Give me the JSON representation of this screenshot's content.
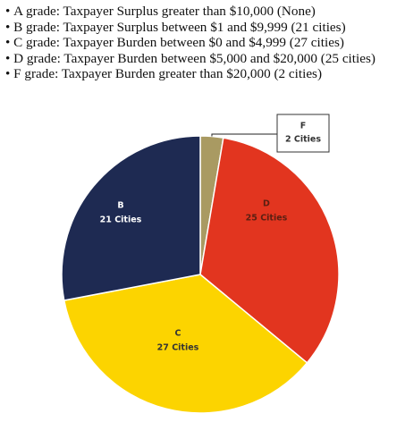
{
  "bullets": [
    "A grade: Taxpayer Surplus greater than $10,000 (None)",
    "B grade: Taxpayer Surplus between $1 and $9,999 (21 cities)",
    "C grade: Taxpayer Burden between $0 and $4,999 (27 cities)",
    "D grade: Taxpayer Burden between $5,000 and $20,000 (25 cities)",
    "F grade: Taxpayer Burden greater than $20,000 (2 cities)"
  ],
  "chart_data": {
    "type": "pie",
    "categories": [
      "F",
      "D",
      "C",
      "B"
    ],
    "values": [
      2,
      25,
      27,
      21
    ],
    "value_labels": [
      "2 Cities",
      "25 Cities",
      "27 Cities",
      "21 Cities"
    ],
    "colors": [
      "#a99a62",
      "#e2351f",
      "#fcd400",
      "#1e2a52"
    ]
  }
}
